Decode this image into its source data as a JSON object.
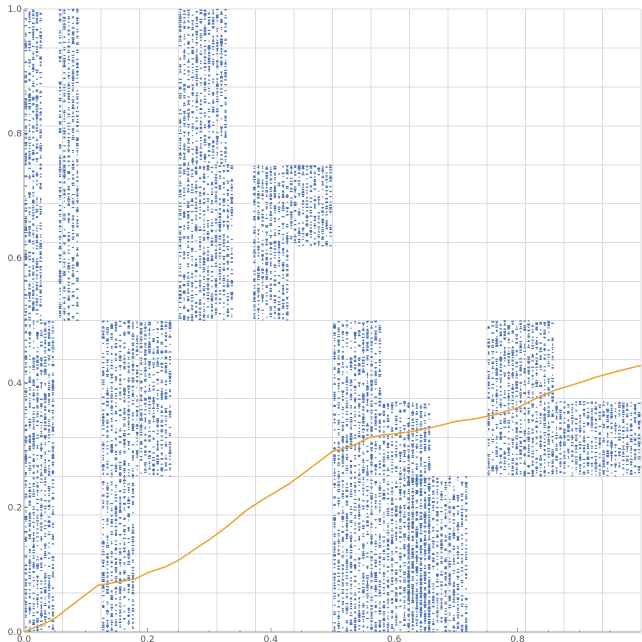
{
  "chart_data": {
    "type": "scatter",
    "title": "",
    "xlabel": "",
    "ylabel": "",
    "xlim": [
      0,
      1
    ],
    "ylim": [
      0,
      1
    ],
    "grid": true,
    "legend": "none",
    "x_ticks": [
      {
        "value": 0,
        "label": "0.0"
      },
      {
        "value": 0.2,
        "label": "0.2"
      },
      {
        "value": 0.4,
        "label": "0.4"
      },
      {
        "value": 0.6,
        "label": "0.6"
      },
      {
        "value": 0.8,
        "label": "0.8"
      }
    ],
    "y_ticks": [
      {
        "value": 0,
        "label": "0.0"
      },
      {
        "value": 0.2,
        "label": "0.2"
      },
      {
        "value": 0.4,
        "label": "0.4"
      },
      {
        "value": 0.6,
        "label": "0.6"
      },
      {
        "value": 0.8,
        "label": "0.8"
      },
      {
        "value": 1.0,
        "label": "1.0"
      }
    ],
    "series": [
      {
        "kind": "scatter",
        "color": "#4a74b4",
        "description_points": "Self-similar fractal point cloud composed of columns of short horizontal dashes",
        "clusters": [
          {
            "x": [
              0.0,
              0.03
            ],
            "y": [
              0.5,
              1.0
            ]
          },
          {
            "x": [
              0.055,
              0.09
            ],
            "y": [
              0.5,
              1.0
            ]
          },
          {
            "x": [
              0.25,
              0.29
            ],
            "y": [
              0.75,
              1.0
            ]
          },
          {
            "x": [
              0.29,
              0.33
            ],
            "y": [
              0.75,
              1.0
            ]
          },
          {
            "x": [
              0.25,
              0.34
            ],
            "y": [
              0.5,
              0.75
            ]
          },
          {
            "x": [
              0.37,
              0.43
            ],
            "y": [
              0.5,
              0.75
            ]
          },
          {
            "x": [
              0.43,
              0.5
            ],
            "y": [
              0.62,
              0.75
            ]
          },
          {
            "x": [
              0.0,
              0.05
            ],
            "y": [
              0.0,
              0.5
            ]
          },
          {
            "x": [
              0.125,
              0.18
            ],
            "y": [
              0.0,
              0.5
            ]
          },
          {
            "x": [
              0.18,
              0.24
            ],
            "y": [
              0.25,
              0.5
            ]
          },
          {
            "x": [
              0.5,
              0.58
            ],
            "y": [
              0.0,
              0.5
            ]
          },
          {
            "x": [
              0.58,
              0.66
            ],
            "y": [
              0.0,
              0.37
            ]
          },
          {
            "x": [
              0.62,
              0.72
            ],
            "y": [
              0.0,
              0.25
            ]
          },
          {
            "x": [
              0.75,
              0.86
            ],
            "y": [
              0.25,
              0.5
            ]
          },
          {
            "x": [
              0.86,
              1.0
            ],
            "y": [
              0.25,
              0.37
            ]
          }
        ]
      },
      {
        "kind": "line",
        "color": "#e8a532",
        "x": [
          0.0,
          0.01,
          0.03,
          0.05,
          0.08,
          0.12,
          0.15,
          0.18,
          0.2,
          0.23,
          0.25,
          0.28,
          0.3,
          0.33,
          0.36,
          0.38,
          0.4,
          0.43,
          0.46,
          0.48,
          0.5,
          0.53,
          0.56,
          0.58,
          0.6,
          0.63,
          0.66,
          0.7,
          0.73,
          0.76,
          0.8,
          0.83,
          0.86,
          0.9,
          0.93,
          0.96,
          1.0
        ],
        "y": [
          0.0,
          0.005,
          0.012,
          0.022,
          0.045,
          0.075,
          0.08,
          0.085,
          0.095,
          0.105,
          0.115,
          0.135,
          0.148,
          0.17,
          0.195,
          0.208,
          0.22,
          0.238,
          0.26,
          0.275,
          0.29,
          0.298,
          0.312,
          0.316,
          0.318,
          0.322,
          0.328,
          0.338,
          0.342,
          0.348,
          0.36,
          0.375,
          0.388,
          0.4,
          0.41,
          0.418,
          0.428
        ]
      }
    ]
  }
}
